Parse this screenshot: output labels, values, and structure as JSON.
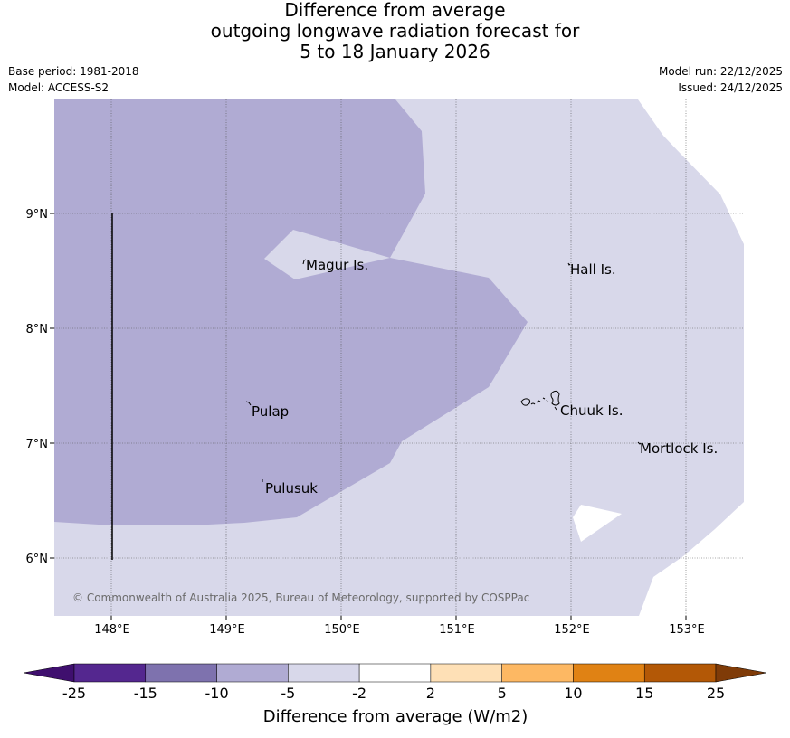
{
  "title": {
    "line1": "Difference from average",
    "line2": "outgoing longwave radiation forecast for",
    "line3": "5 to 18 January 2026"
  },
  "meta": {
    "base_period": "Base period: 1981-2018",
    "model": "Model: ACCESS-S2",
    "model_run": "Model run: 22/12/2025",
    "issued": "Issued: 24/12/2025"
  },
  "map": {
    "lat_labels": [
      "9°N",
      "8°N",
      "7°N",
      "6°N"
    ],
    "lon_labels": [
      "148°E",
      "149°E",
      "150°E",
      "151°E",
      "152°E",
      "153°E"
    ],
    "places": {
      "magur": "Magur Is.",
      "hall": "Hall Is.",
      "pulap": "Pulap",
      "chuuk": "Chuuk Is.",
      "mortlock": "Mortlock Is.",
      "pulusuk": "Pulusuk"
    },
    "copyright": "© Commonwealth of Australia 2025, Bureau of Meteorology, supported by COSPPac",
    "colors": {
      "band_minus10_minus5": "#b0abd3",
      "band_minus5_minus2": "#d8d8ea",
      "band_minus2_2": "#ffffff"
    }
  },
  "colorbar": {
    "title": "Difference from average (W/m2)",
    "ticks": [
      "-25",
      "-15",
      "-10",
      "-5",
      "-2",
      "2",
      "5",
      "10",
      "15",
      "25"
    ],
    "colors": [
      "#3f0f6e",
      "#54278f",
      "#7e72ae",
      "#b0abd3",
      "#d8d8ea",
      "#ffffff",
      "#fee0b6",
      "#fdb863",
      "#e08214",
      "#b35806",
      "#7f3b08"
    ]
  }
}
